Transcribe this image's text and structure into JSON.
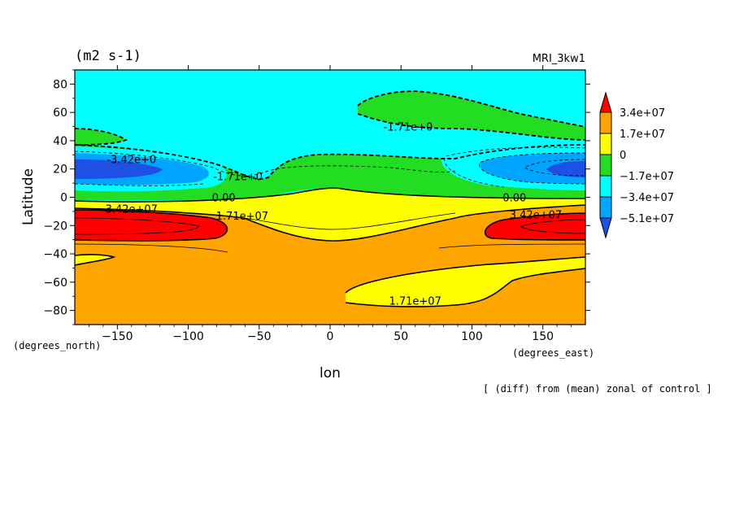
{
  "chart_data": {
    "type": "contour",
    "title_left": "(m2 s-1)",
    "title_right": "MRI_3kw1",
    "xlabel": "lon",
    "ylabel": "Latitude",
    "x_units": "(degrees_east)",
    "y_units": "(degrees_north)",
    "footnote": "[ (diff) from (mean) zonal of control ]",
    "xlim": [
      -180,
      180
    ],
    "ylim": [
      -90,
      90
    ],
    "x_ticks": [
      -150,
      -100,
      -50,
      0,
      50,
      100,
      150
    ],
    "y_ticks": [
      80,
      60,
      40,
      20,
      0,
      -20,
      -40,
      -60,
      -80
    ],
    "colorbar": {
      "labels": [
        "3.4e+07",
        "1.7e+07",
        "0",
        "-1.7e+07",
        "-3.4e+07",
        "-5.1e+07"
      ],
      "colors": [
        "#ff0000",
        "#ffa500",
        "#ffff00",
        "#22dd22",
        "#00ffff",
        "#00a5ff",
        "#1e50e6"
      ]
    },
    "contour_labels": [
      {
        "text": "-1.71e+0",
        "lon": 55,
        "lat": 50
      },
      {
        "text": "-3.42e+0",
        "lon": -140,
        "lat": 27
      },
      {
        "text": "-1.71e+0",
        "lon": -65,
        "lat": 15
      },
      {
        "text": "0.00",
        "lon": -75,
        "lat": 0
      },
      {
        "text": "0.00",
        "lon": 130,
        "lat": 0
      },
      {
        "text": "3.42e+07",
        "lon": -140,
        "lat": -8
      },
      {
        "text": "1.71e+07",
        "lon": -62,
        "lat": -13
      },
      {
        "text": "3.42e+07",
        "lon": 145,
        "lat": -12
      },
      {
        "text": "1.71e+07",
        "lon": 60,
        "lat": -73
      }
    ]
  }
}
